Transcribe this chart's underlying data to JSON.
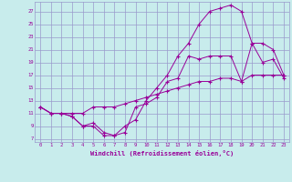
{
  "xlabel": "Windchill (Refroidissement éolien,°C)",
  "bg_color": "#c8ecec",
  "grid_color": "#9999cc",
  "line_color": "#990099",
  "xlim": [
    -0.5,
    23.5
  ],
  "ylim": [
    6.5,
    28.5
  ],
  "xticks": [
    0,
    1,
    2,
    3,
    4,
    5,
    6,
    7,
    8,
    9,
    10,
    11,
    12,
    13,
    14,
    15,
    16,
    17,
    18,
    19,
    20,
    21,
    22,
    23
  ],
  "yticks": [
    7,
    9,
    11,
    13,
    15,
    17,
    19,
    21,
    23,
    25,
    27
  ],
  "line1_x": [
    0,
    1,
    2,
    3,
    4,
    5,
    6,
    7,
    8,
    9,
    10,
    11,
    12,
    13,
    14,
    15,
    16,
    17,
    18,
    19,
    20,
    21,
    22,
    23
  ],
  "line1_y": [
    12,
    11,
    11,
    10.5,
    9,
    9,
    7.5,
    7.5,
    8,
    12,
    12.5,
    13.5,
    16,
    16.5,
    20,
    19.5,
    20,
    20,
    20,
    16,
    22,
    19,
    19.5,
    16.5
  ],
  "line2_x": [
    0,
    1,
    2,
    3,
    4,
    5,
    6,
    7,
    8,
    9,
    10,
    11,
    12,
    13,
    14,
    15,
    16,
    17,
    18,
    19,
    20,
    21,
    22,
    23
  ],
  "line2_y": [
    12,
    11,
    11,
    10.5,
    9,
    9.5,
    8,
    7.5,
    9,
    10,
    13,
    15,
    17,
    20,
    22,
    25,
    27,
    27.5,
    28,
    27,
    22,
    22,
    21,
    17
  ],
  "line3_x": [
    0,
    1,
    2,
    3,
    4,
    5,
    6,
    7,
    8,
    9,
    10,
    11,
    12,
    13,
    14,
    15,
    16,
    17,
    18,
    19,
    20,
    21,
    22,
    23
  ],
  "line3_y": [
    12,
    11,
    11,
    11,
    11,
    12,
    12,
    12,
    12.5,
    13,
    13.5,
    14,
    14.5,
    15,
    15.5,
    16,
    16,
    16.5,
    16.5,
    16,
    17,
    17,
    17,
    17
  ]
}
